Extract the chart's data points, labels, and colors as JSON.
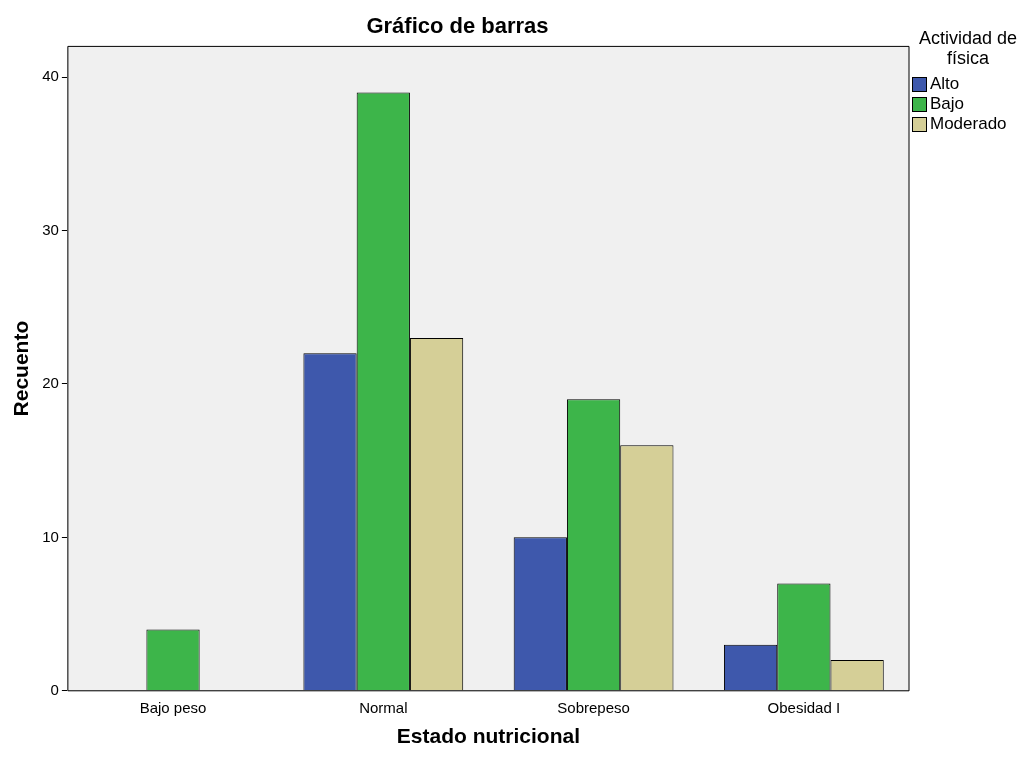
{
  "chart_data": {
    "type": "bar",
    "title": "Gráfico de barras",
    "xlabel": "Estado nutricional",
    "ylabel": "Recuento",
    "legend_title": "Actividad de física",
    "legend": "top right",
    "grid": false,
    "categories": [
      "Bajo peso",
      "Normal",
      "Sobrepeso",
      "Obesidad I"
    ],
    "series": [
      {
        "name": "Alto",
        "color": "#3e58ac",
        "values": [
          null,
          22,
          10,
          3
        ]
      },
      {
        "name": "Bajo",
        "color": "#3db54a",
        "values": [
          4,
          39,
          19,
          7
        ]
      },
      {
        "name": "Moderado",
        "color": "#d5cf97",
        "values": [
          null,
          23,
          16,
          2
        ]
      }
    ],
    "ylim": [
      0,
      42
    ],
    "yticks": [
      0,
      10,
      20,
      30,
      40
    ]
  }
}
